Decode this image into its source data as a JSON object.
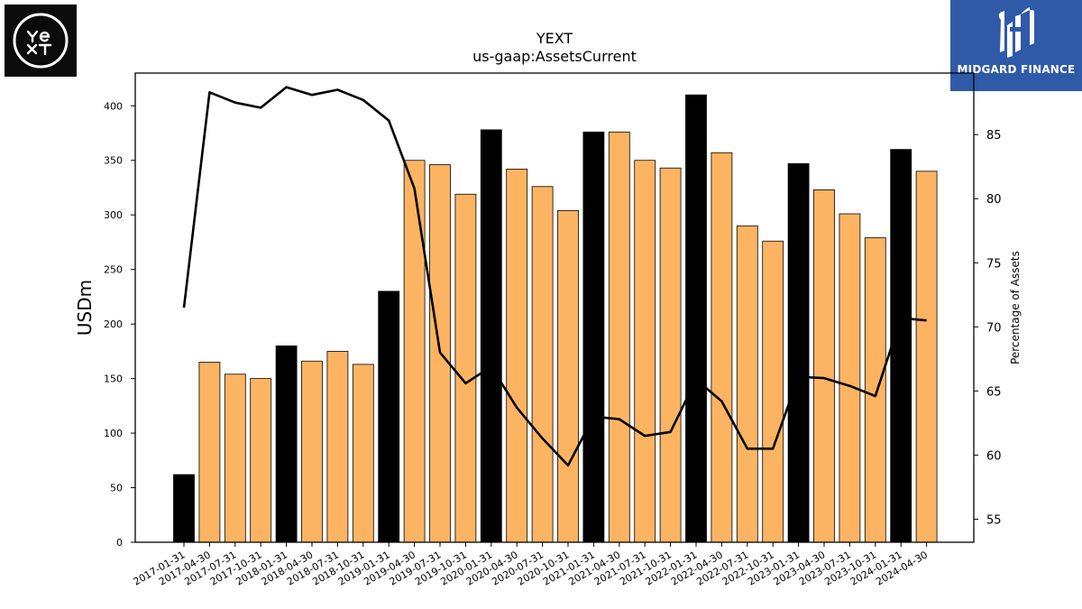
{
  "logos": {
    "left_icon": "yext-logo",
    "left_text": "YEXT",
    "right_icon": "midgard-logo",
    "right_text": "MIDGARD FINANCE"
  },
  "colors": {
    "bar_default": "#FDB462",
    "bar_highlight": "#000000",
    "line": "#000000",
    "right_logo_bg": "#2f5aa8"
  },
  "chart_data": {
    "type": "bar",
    "title": "YEXT",
    "subtitle": "us-gaap:AssetsCurrent",
    "ylabel": "USDm",
    "y2label": "Percentage of Assets",
    "ylim": [
      0,
      430
    ],
    "y2lim": [
      53.2,
      89.8
    ],
    "yticks": [
      0,
      50,
      100,
      150,
      200,
      250,
      300,
      350,
      400
    ],
    "y2ticks": [
      55,
      60,
      65,
      70,
      75,
      80,
      85
    ],
    "categories": [
      "2017-01-31",
      "2017-04-30",
      "2017-07-31",
      "2017-10-31",
      "2018-01-31",
      "2018-04-30",
      "2018-07-31",
      "2018-10-31",
      "2019-01-31",
      "2019-04-30",
      "2019-07-31",
      "2019-10-31",
      "2020-01-31",
      "2020-04-30",
      "2020-07-31",
      "2020-10-31",
      "2021-01-31",
      "2021-04-30",
      "2021-07-31",
      "2021-10-31",
      "2022-01-31",
      "2022-04-30",
      "2022-07-31",
      "2022-10-31",
      "2023-01-31",
      "2023-04-30",
      "2023-07-31",
      "2023-10-31",
      "2024-01-31",
      "2024-04-30"
    ],
    "series": [
      {
        "type": "bar",
        "axis": "left",
        "values": [
          62,
          165,
          154,
          150,
          180,
          166,
          175,
          163,
          230,
          350,
          346,
          319,
          378,
          342,
          326,
          304,
          376,
          376,
          350,
          343,
          410,
          357,
          290,
          276,
          347,
          323,
          301,
          279,
          360,
          340
        ],
        "highlight": [
          true,
          false,
          false,
          false,
          true,
          false,
          false,
          false,
          true,
          false,
          false,
          false,
          true,
          false,
          false,
          false,
          true,
          false,
          false,
          false,
          true,
          false,
          false,
          false,
          true,
          false,
          false,
          false,
          true,
          false
        ]
      },
      {
        "type": "line",
        "axis": "right",
        "values": [
          71.5,
          88.3,
          87.5,
          87.1,
          88.7,
          88.1,
          88.5,
          87.7,
          86.1,
          80.8,
          68.0,
          65.6,
          66.9,
          63.7,
          61.3,
          59.2,
          63.0,
          62.8,
          61.5,
          61.8,
          65.9,
          64.2,
          60.5,
          60.5,
          66.1,
          66.0,
          65.4,
          64.6,
          70.7,
          70.5
        ]
      }
    ],
    "grid": false,
    "legend": "none"
  }
}
